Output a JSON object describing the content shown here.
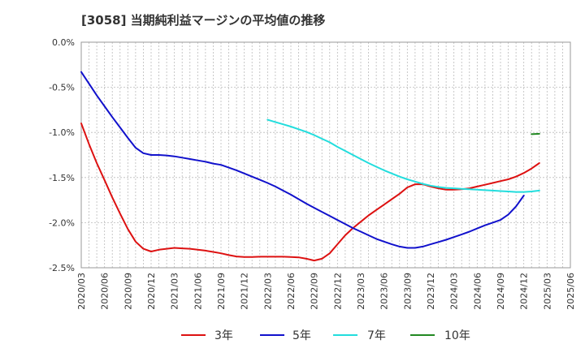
{
  "chart_data": {
    "type": "line",
    "title": "[3058]  当期純利益マージンの平均値の推移",
    "xlabel": "",
    "ylabel": "",
    "ylim": [
      -2.5,
      0.0
    ],
    "xlim": [
      "2020/03",
      "2025/06"
    ],
    "grid": true,
    "legend_position": "bottom",
    "y_ticks": [
      "0.0%",
      "-0.5%",
      "-1.0%",
      "-1.5%",
      "-2.0%",
      "-2.5%"
    ],
    "y_tick_values": [
      0.0,
      -0.5,
      -1.0,
      -1.5,
      -2.0,
      -2.5
    ],
    "x_ticks": [
      "2020/03",
      "2020/06",
      "2020/09",
      "2020/12",
      "2021/03",
      "2021/06",
      "2021/09",
      "2021/12",
      "2022/03",
      "2022/06",
      "2022/09",
      "2022/12",
      "2023/03",
      "2023/06",
      "2023/09",
      "2023/12",
      "2024/03",
      "2024/06",
      "2024/09",
      "2024/12",
      "2025/03",
      "2025/06"
    ],
    "series": [
      {
        "name": "3年",
        "color": "#dd1111",
        "points": [
          [
            "2020/03",
            -0.9
          ],
          [
            "2020/04",
            -1.13
          ],
          [
            "2020/05",
            -1.34
          ],
          [
            "2020/06",
            -1.53
          ],
          [
            "2020/07",
            -1.72
          ],
          [
            "2020/08",
            -1.9
          ],
          [
            "2020/09",
            -2.07
          ],
          [
            "2020/10",
            -2.21
          ],
          [
            "2020/11",
            -2.29
          ],
          [
            "2020/12",
            -2.32
          ],
          [
            "2021/01",
            -2.3
          ],
          [
            "2021/02",
            -2.29
          ],
          [
            "2021/03",
            -2.28
          ],
          [
            "2021/04",
            -2.285
          ],
          [
            "2021/05",
            -2.29
          ],
          [
            "2021/06",
            -2.3
          ],
          [
            "2021/07",
            -2.31
          ],
          [
            "2021/08",
            -2.325
          ],
          [
            "2021/09",
            -2.34
          ],
          [
            "2021/10",
            -2.36
          ],
          [
            "2021/11",
            -2.375
          ],
          [
            "2021/12",
            -2.38
          ],
          [
            "2022/01",
            -2.38
          ],
          [
            "2022/02",
            -2.378
          ],
          [
            "2022/03",
            -2.378
          ],
          [
            "2022/04",
            -2.378
          ],
          [
            "2022/05",
            -2.378
          ],
          [
            "2022/06",
            -2.38
          ],
          [
            "2022/07",
            -2.385
          ],
          [
            "2022/08",
            -2.4
          ],
          [
            "2022/09",
            -2.42
          ],
          [
            "2022/10",
            -2.4
          ],
          [
            "2022/11",
            -2.34
          ],
          [
            "2022/12",
            -2.24
          ],
          [
            "2023/01",
            -2.14
          ],
          [
            "2023/02",
            -2.06
          ],
          [
            "2023/03",
            -1.99
          ],
          [
            "2023/04",
            -1.92
          ],
          [
            "2023/05",
            -1.86
          ],
          [
            "2023/06",
            -1.8
          ],
          [
            "2023/07",
            -1.74
          ],
          [
            "2023/08",
            -1.68
          ],
          [
            "2023/09",
            -1.61
          ],
          [
            "2023/10",
            -1.575
          ],
          [
            "2023/11",
            -1.575
          ],
          [
            "2023/12",
            -1.6
          ],
          [
            "2024/01",
            -1.62
          ],
          [
            "2024/02",
            -1.635
          ],
          [
            "2024/03",
            -1.635
          ],
          [
            "2024/04",
            -1.63
          ],
          [
            "2024/05",
            -1.62
          ],
          [
            "2024/06",
            -1.6
          ],
          [
            "2024/07",
            -1.58
          ],
          [
            "2024/08",
            -1.56
          ],
          [
            "2024/09",
            -1.54
          ],
          [
            "2024/10",
            -1.52
          ],
          [
            "2024/11",
            -1.49
          ],
          [
            "2024/12",
            -1.45
          ],
          [
            "2025/01",
            -1.4
          ],
          [
            "2025/02",
            -1.34
          ]
        ]
      },
      {
        "name": "5年",
        "color": "#1111cc",
        "points": [
          [
            "2020/03",
            -0.33
          ],
          [
            "2020/04",
            -0.46
          ],
          [
            "2020/05",
            -0.59
          ],
          [
            "2020/06",
            -0.71
          ],
          [
            "2020/07",
            -0.83
          ],
          [
            "2020/08",
            -0.945
          ],
          [
            "2020/09",
            -1.06
          ],
          [
            "2020/10",
            -1.17
          ],
          [
            "2020/11",
            -1.23
          ],
          [
            "2020/12",
            -1.25
          ],
          [
            "2021/01",
            -1.25
          ],
          [
            "2021/02",
            -1.255
          ],
          [
            "2021/03",
            -1.265
          ],
          [
            "2021/04",
            -1.28
          ],
          [
            "2021/05",
            -1.295
          ],
          [
            "2021/06",
            -1.31
          ],
          [
            "2021/07",
            -1.325
          ],
          [
            "2021/08",
            -1.345
          ],
          [
            "2021/09",
            -1.36
          ],
          [
            "2021/10",
            -1.39
          ],
          [
            "2021/11",
            -1.42
          ],
          [
            "2021/12",
            -1.455
          ],
          [
            "2022/01",
            -1.49
          ],
          [
            "2022/02",
            -1.525
          ],
          [
            "2022/03",
            -1.56
          ],
          [
            "2022/04",
            -1.6
          ],
          [
            "2022/05",
            -1.645
          ],
          [
            "2022/06",
            -1.69
          ],
          [
            "2022/07",
            -1.74
          ],
          [
            "2022/08",
            -1.79
          ],
          [
            "2022/09",
            -1.835
          ],
          [
            "2022/10",
            -1.88
          ],
          [
            "2022/11",
            -1.925
          ],
          [
            "2022/12",
            -1.97
          ],
          [
            "2023/01",
            -2.015
          ],
          [
            "2023/02",
            -2.06
          ],
          [
            "2023/03",
            -2.1
          ],
          [
            "2023/04",
            -2.14
          ],
          [
            "2023/05",
            -2.18
          ],
          [
            "2023/06",
            -2.21
          ],
          [
            "2023/07",
            -2.24
          ],
          [
            "2023/08",
            -2.265
          ],
          [
            "2023/09",
            -2.28
          ],
          [
            "2023/10",
            -2.28
          ],
          [
            "2023/11",
            -2.265
          ],
          [
            "2023/12",
            -2.24
          ],
          [
            "2024/01",
            -2.215
          ],
          [
            "2024/02",
            -2.19
          ],
          [
            "2024/03",
            -2.16
          ],
          [
            "2024/04",
            -2.13
          ],
          [
            "2024/05",
            -2.1
          ],
          [
            "2024/06",
            -2.065
          ],
          [
            "2024/07",
            -2.03
          ],
          [
            "2024/08",
            -2.0
          ],
          [
            "2024/09",
            -1.97
          ],
          [
            "2024/10",
            -1.91
          ],
          [
            "2024/11",
            -1.82
          ],
          [
            "2024/12",
            -1.7
          ]
        ]
      },
      {
        "name": "7年",
        "color": "#22dddd",
        "points": [
          [
            "2022/03",
            -0.86
          ],
          [
            "2022/04",
            -0.885
          ],
          [
            "2022/05",
            -0.91
          ],
          [
            "2022/06",
            -0.935
          ],
          [
            "2022/07",
            -0.965
          ],
          [
            "2022/08",
            -0.995
          ],
          [
            "2022/09",
            -1.03
          ],
          [
            "2022/10",
            -1.07
          ],
          [
            "2022/11",
            -1.11
          ],
          [
            "2022/12",
            -1.16
          ],
          [
            "2023/01",
            -1.205
          ],
          [
            "2023/02",
            -1.25
          ],
          [
            "2023/03",
            -1.295
          ],
          [
            "2023/04",
            -1.34
          ],
          [
            "2023/05",
            -1.38
          ],
          [
            "2023/06",
            -1.42
          ],
          [
            "2023/07",
            -1.455
          ],
          [
            "2023/08",
            -1.49
          ],
          [
            "2023/09",
            -1.52
          ],
          [
            "2023/10",
            -1.545
          ],
          [
            "2023/11",
            -1.57
          ],
          [
            "2023/12",
            -1.59
          ],
          [
            "2024/01",
            -1.605
          ],
          [
            "2024/02",
            -1.615
          ],
          [
            "2024/03",
            -1.62
          ],
          [
            "2024/04",
            -1.625
          ],
          [
            "2024/05",
            -1.63
          ],
          [
            "2024/06",
            -1.635
          ],
          [
            "2024/07",
            -1.64
          ],
          [
            "2024/08",
            -1.645
          ],
          [
            "2024/09",
            -1.65
          ],
          [
            "2024/10",
            -1.655
          ],
          [
            "2024/11",
            -1.66
          ],
          [
            "2024/12",
            -1.66
          ],
          [
            "2025/01",
            -1.655
          ],
          [
            "2025/02",
            -1.645
          ]
        ]
      },
      {
        "name": "10年",
        "color": "#228822",
        "points": [
          [
            "2025/01",
            -1.02
          ],
          [
            "2025/02",
            -1.015
          ]
        ]
      }
    ]
  }
}
